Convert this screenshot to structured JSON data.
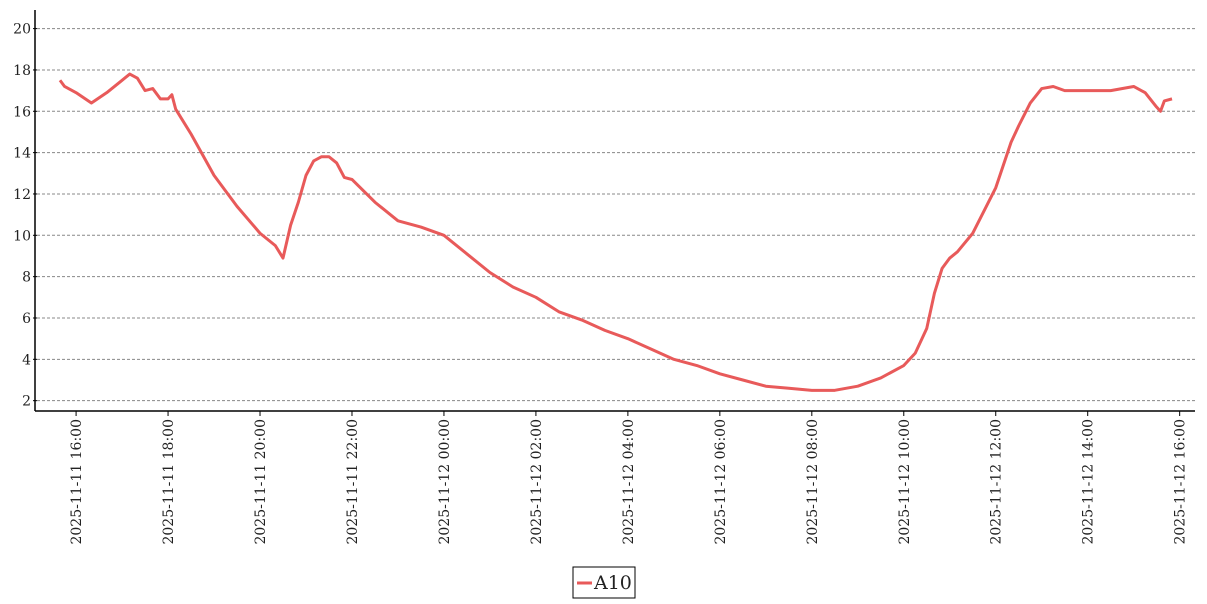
{
  "chart_data": {
    "type": "line",
    "x": [
      "2025-11-11 15:39",
      "2025-11-11 15:45",
      "2025-11-11 16:00",
      "2025-11-11 16:20",
      "2025-11-11 16:40",
      "2025-11-11 17:00",
      "2025-11-11 17:10",
      "2025-11-11 17:20",
      "2025-11-11 17:30",
      "2025-11-11 17:40",
      "2025-11-11 17:50",
      "2025-11-11 18:00",
      "2025-11-11 18:05",
      "2025-11-11 18:10",
      "2025-11-11 18:30",
      "2025-11-11 19:00",
      "2025-11-11 19:30",
      "2025-11-11 20:00",
      "2025-11-11 20:20",
      "2025-11-11 20:30",
      "2025-11-11 20:40",
      "2025-11-11 20:50",
      "2025-11-11 21:00",
      "2025-11-11 21:10",
      "2025-11-11 21:20",
      "2025-11-11 21:30",
      "2025-11-11 21:40",
      "2025-11-11 21:50",
      "2025-11-11 22:00",
      "2025-11-11 22:30",
      "2025-11-11 23:00",
      "2025-11-11 23:30",
      "2025-11-12 00:00",
      "2025-11-12 00:30",
      "2025-11-12 01:00",
      "2025-11-12 01:30",
      "2025-11-12 02:00",
      "2025-11-12 02:30",
      "2025-11-12 03:00",
      "2025-11-12 03:30",
      "2025-11-12 04:00",
      "2025-11-12 04:30",
      "2025-11-12 05:00",
      "2025-11-12 05:30",
      "2025-11-12 06:00",
      "2025-11-12 06:30",
      "2025-11-12 07:00",
      "2025-11-12 07:30",
      "2025-11-12 08:00",
      "2025-11-12 08:30",
      "2025-11-12 09:00",
      "2025-11-12 09:30",
      "2025-11-12 10:00",
      "2025-11-12 10:15",
      "2025-11-12 10:30",
      "2025-11-12 10:40",
      "2025-11-12 10:50",
      "2025-11-12 11:00",
      "2025-11-12 11:10",
      "2025-11-12 11:30",
      "2025-11-12 12:00",
      "2025-11-12 12:20",
      "2025-11-12 12:30",
      "2025-11-12 12:45",
      "2025-11-12 13:00",
      "2025-11-12 13:15",
      "2025-11-12 13:30",
      "2025-11-12 14:00",
      "2025-11-12 14:30",
      "2025-11-12 15:00",
      "2025-11-12 15:15",
      "2025-11-12 15:30",
      "2025-11-12 15:35",
      "2025-11-12 15:40",
      "2025-11-12 15:50"
    ],
    "series": [
      {
        "name": "A10",
        "color": "#e85a5a",
        "values": [
          17.5,
          17.2,
          16.9,
          16.4,
          16.9,
          17.5,
          17.8,
          17.6,
          17.0,
          17.1,
          16.6,
          16.6,
          16.8,
          16.1,
          14.9,
          12.9,
          11.4,
          10.1,
          9.5,
          8.9,
          10.5,
          11.6,
          12.9,
          13.6,
          13.8,
          13.8,
          13.5,
          12.8,
          12.7,
          11.6,
          10.7,
          10.4,
          10.0,
          9.1,
          8.2,
          7.5,
          7.0,
          6.3,
          5.9,
          5.4,
          5.0,
          4.5,
          4.0,
          3.7,
          3.3,
          3.0,
          2.7,
          2.6,
          2.5,
          2.5,
          2.7,
          3.1,
          3.7,
          4.3,
          5.5,
          7.2,
          8.4,
          8.9,
          9.2,
          10.1,
          12.3,
          14.5,
          15.3,
          16.4,
          17.1,
          17.2,
          17.0,
          17.0,
          17.0,
          17.2,
          16.9,
          16.2,
          16.0,
          16.5,
          16.6
        ]
      }
    ],
    "xlim": [
      "2025-11-11 15:09",
      "2025-11-12 16:20"
    ],
    "xticks": [
      "2025-11-11 16:00",
      "2025-11-11 18:00",
      "2025-11-11 20:00",
      "2025-11-11 22:00",
      "2025-11-12 00:00",
      "2025-11-12 02:00",
      "2025-11-12 04:00",
      "2025-11-12 06:00",
      "2025-11-12 08:00",
      "2025-11-12 10:00",
      "2025-11-12 12:00",
      "2025-11-12 14:00",
      "2025-11-12 16:00"
    ],
    "ylim": [
      1.5,
      20.9
    ],
    "yticks": [
      2,
      4,
      6,
      8,
      10,
      12,
      14,
      16,
      18,
      20
    ],
    "grid": true,
    "legend": "bottom"
  }
}
